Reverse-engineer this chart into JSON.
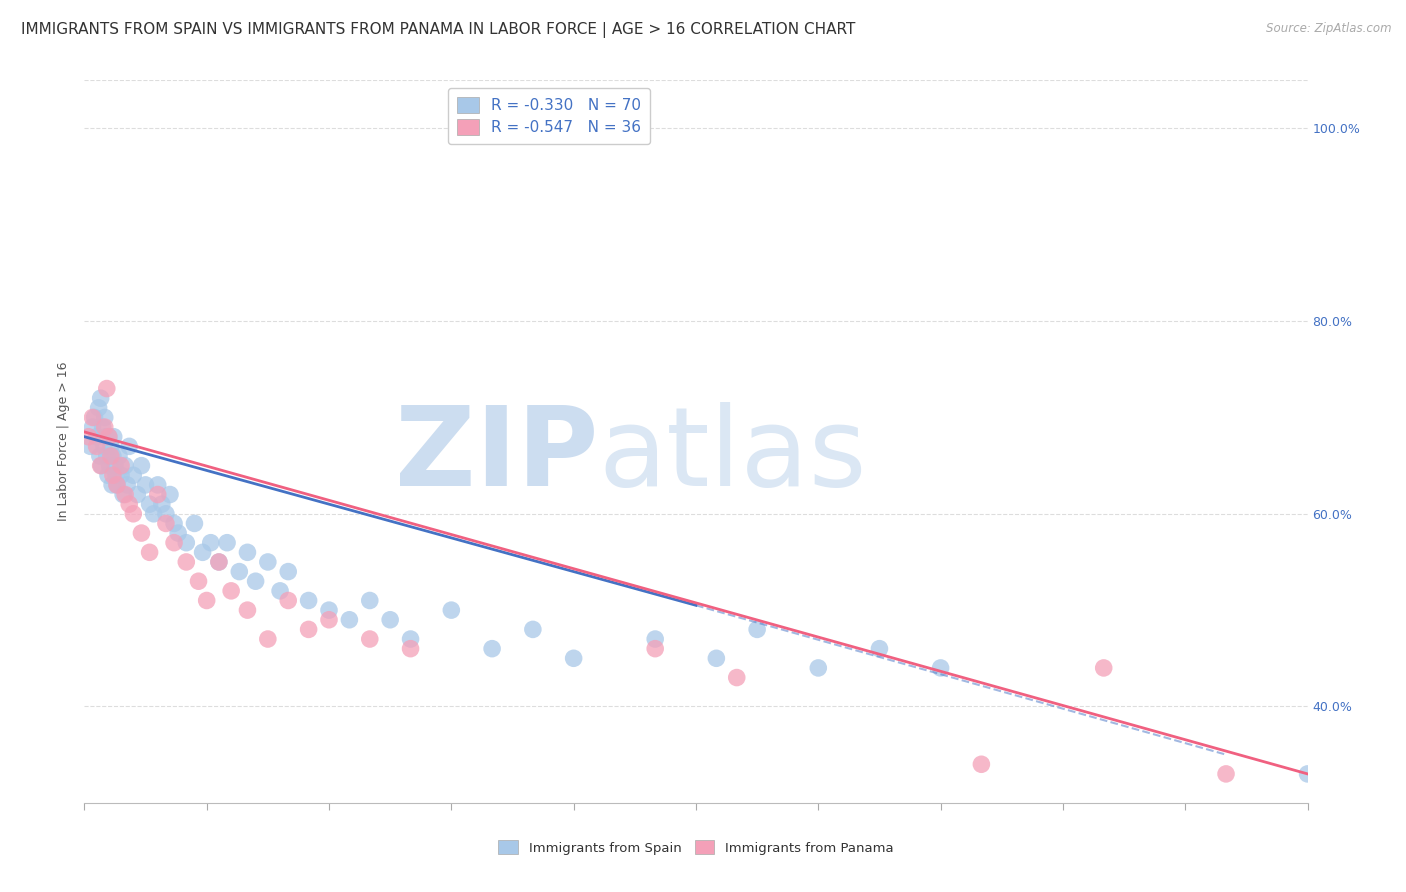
{
  "title": "IMMIGRANTS FROM SPAIN VS IMMIGRANTS FROM PANAMA IN LABOR FORCE | AGE > 16 CORRELATION CHART",
  "source": "Source: ZipAtlas.com",
  "ylabel": "In Labor Force | Age > 16",
  "xlim": [
    0.0,
    30.0
  ],
  "ylim": [
    30.0,
    105.0
  ],
  "yticks": [
    40.0,
    60.0,
    80.0,
    100.0
  ],
  "spain_R": -0.33,
  "spain_N": 70,
  "panama_R": -0.547,
  "panama_N": 36,
  "spain_color": "#a8c8e8",
  "panama_color": "#f4a0b8",
  "spain_line_color": "#4472c4",
  "panama_line_color": "#f06080",
  "watermark_zip": "ZIP",
  "watermark_atlas": "atlas",
  "watermark_color": "#ccddf0",
  "background_color": "#ffffff",
  "grid_color": "#dddddd",
  "title_fontsize": 11,
  "spain_scatter_x": [
    0.15,
    0.2,
    0.25,
    0.3,
    0.35,
    0.38,
    0.4,
    0.42,
    0.45,
    0.48,
    0.5,
    0.52,
    0.55,
    0.58,
    0.6,
    0.62,
    0.65,
    0.68,
    0.7,
    0.72,
    0.75,
    0.78,
    0.8,
    0.85,
    0.9,
    0.95,
    1.0,
    1.05,
    1.1,
    1.2,
    1.3,
    1.4,
    1.5,
    1.6,
    1.7,
    1.8,
    1.9,
    2.0,
    2.1,
    2.2,
    2.3,
    2.5,
    2.7,
    2.9,
    3.1,
    3.3,
    3.5,
    3.8,
    4.0,
    4.2,
    4.5,
    4.8,
    5.0,
    5.5,
    6.0,
    6.5,
    7.0,
    7.5,
    8.0,
    9.0,
    10.0,
    11.0,
    12.0,
    14.0,
    15.5,
    16.5,
    18.0,
    19.5,
    21.0,
    30.0
  ],
  "spain_scatter_y": [
    67,
    69,
    70,
    68,
    71,
    66,
    72,
    65,
    69,
    67,
    70,
    68,
    66,
    64,
    68,
    65,
    67,
    63,
    66,
    68,
    65,
    64,
    63,
    66,
    64,
    62,
    65,
    63,
    67,
    64,
    62,
    65,
    63,
    61,
    60,
    63,
    61,
    60,
    62,
    59,
    58,
    57,
    59,
    56,
    57,
    55,
    57,
    54,
    56,
    53,
    55,
    52,
    54,
    51,
    50,
    49,
    51,
    49,
    47,
    50,
    46,
    48,
    45,
    47,
    45,
    48,
    44,
    46,
    44,
    33
  ],
  "panama_scatter_x": [
    0.1,
    0.2,
    0.3,
    0.4,
    0.5,
    0.55,
    0.6,
    0.65,
    0.7,
    0.8,
    0.9,
    1.0,
    1.1,
    1.2,
    1.4,
    1.6,
    1.8,
    2.0,
    2.2,
    2.5,
    2.8,
    3.0,
    3.3,
    3.6,
    4.0,
    4.5,
    5.0,
    5.5,
    6.0,
    7.0,
    8.0,
    14.0,
    16.0,
    22.0,
    25.0,
    28.0
  ],
  "panama_scatter_y": [
    68,
    70,
    67,
    65,
    69,
    73,
    68,
    66,
    64,
    63,
    65,
    62,
    61,
    60,
    58,
    56,
    62,
    59,
    57,
    55,
    53,
    51,
    55,
    52,
    50,
    47,
    51,
    48,
    49,
    47,
    46,
    46,
    43,
    34,
    44,
    33
  ],
  "spain_trend_x0": 0.0,
  "spain_trend_y0": 68.0,
  "spain_trend_x1": 15.0,
  "spain_trend_y1": 50.5,
  "spain_dash_x0": 15.0,
  "spain_dash_y0": 50.5,
  "spain_dash_x1": 28.0,
  "spain_dash_y1": 35.0,
  "panama_trend_x0": 0.0,
  "panama_trend_y0": 68.5,
  "panama_trend_x1": 30.0,
  "panama_trend_y1": 33.0,
  "num_xticks": 11
}
